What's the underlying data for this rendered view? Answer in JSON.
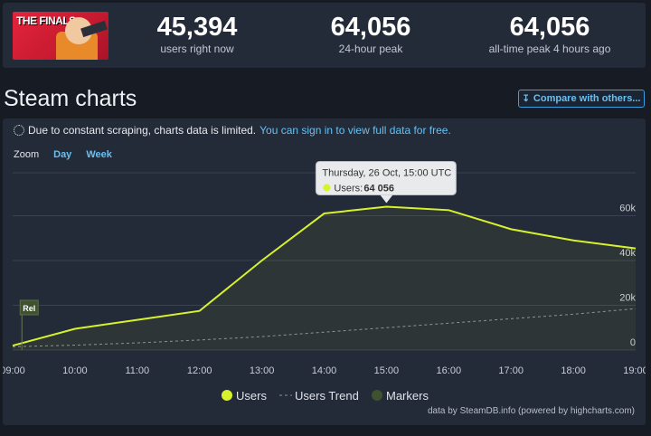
{
  "game": {
    "logo_text": "THE FINALS"
  },
  "stats": [
    {
      "value": "45,394",
      "label": "users right now"
    },
    {
      "value": "64,056",
      "label": "24-hour peak"
    },
    {
      "value": "64,056",
      "label": "all-time peak 4 hours ago"
    }
  ],
  "page_title": "Steam charts",
  "compare_button": "Compare with others...",
  "notice": {
    "text": "Due to constant scraping, charts data is limited.",
    "link": "You can sign in to view full data for free."
  },
  "zoom": {
    "label": "Zoom",
    "options": [
      "Day",
      "Week"
    ]
  },
  "credit": "data by SteamDB.info (powered by highcharts.com)",
  "tooltip": {
    "title": "Thursday, 26 Oct, 15:00 UTC",
    "series": "Users:",
    "value": "64 056"
  },
  "colors": {
    "users": "#d7f22d",
    "trend": "#8a8f98",
    "markers": "#3e5230",
    "grid": "#3a4150"
  },
  "chart_data": {
    "type": "line",
    "x": [
      "09:00",
      "10:00",
      "11:00",
      "12:00",
      "13:00",
      "14:00",
      "15:00",
      "16:00",
      "17:00",
      "18:00",
      "19:00"
    ],
    "ylim": [
      0,
      80000
    ],
    "yticks": [
      0,
      20000,
      40000,
      60000
    ],
    "ytick_labels": [
      "0",
      "20k",
      "40k",
      "60k"
    ],
    "series": [
      {
        "name": "Users",
        "points": [
          [
            9.0,
            2000
          ],
          [
            10.0,
            9500
          ],
          [
            11.0,
            13500
          ],
          [
            12.0,
            17500
          ],
          [
            13.0,
            40000
          ],
          [
            14.0,
            61000
          ],
          [
            15.0,
            64056
          ],
          [
            16.0,
            62500
          ],
          [
            17.0,
            54000
          ],
          [
            18.0,
            49000
          ],
          [
            19.0,
            45394
          ]
        ]
      },
      {
        "name": "Users Trend",
        "points": [
          [
            9.0,
            1500
          ],
          [
            10.0,
            2200
          ],
          [
            11.0,
            3200
          ],
          [
            12.0,
            4500
          ],
          [
            13.0,
            6000
          ],
          [
            14.0,
            8000
          ],
          [
            15.0,
            10000
          ],
          [
            16.0,
            12000
          ],
          [
            17.0,
            14000
          ],
          [
            18.0,
            16000
          ],
          [
            19.0,
            18500
          ]
        ]
      }
    ],
    "markers_series": {
      "name": "Markers",
      "items": [
        {
          "x": 9.25,
          "label": "Rel"
        }
      ]
    },
    "legend": [
      "Users",
      "Users Trend",
      "Markers"
    ],
    "legend_position": "bottom-center",
    "grid": true
  }
}
